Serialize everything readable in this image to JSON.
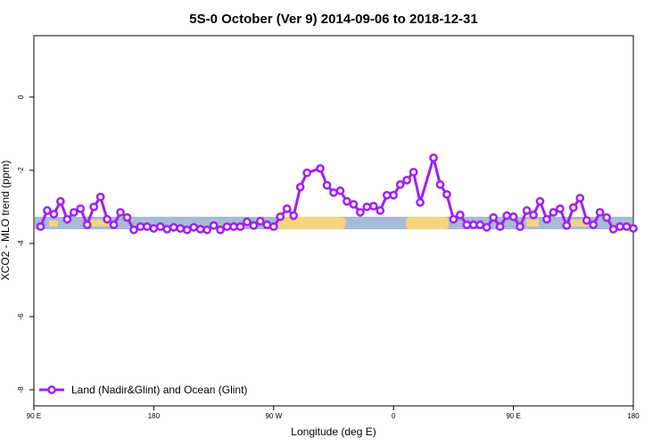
{
  "chart_data": {
    "type": "line",
    "title": "5S-0 October (Ver 9)   2014-09-06 to 2018-12-31",
    "x_label": "Longitude (deg E)",
    "y_label": "XCO2 - MLO trend (ppm)",
    "xlim": [
      90,
      540
    ],
    "xticks": [
      {
        "value": 90,
        "label": "90 E"
      },
      180,
      {
        "value": 270,
        "label": "90 W"
      },
      {
        "value": 360,
        "label": "0"
      },
      {
        "value": 450,
        "label": "90 E"
      },
      {
        "value": 540,
        "label": "180"
      }
    ],
    "ylim": [
      -8.44,
      1.68
    ],
    "yticks": [
      0,
      -2,
      -4,
      -6,
      -8
    ],
    "legend": "bottom-left",
    "series": [
      {
        "name": "Land (Nadir&Glint) and Ocean (Glint)",
        "color": "#a020f0",
        "x": [
          95,
          100,
          105,
          110,
          115,
          120,
          125,
          130,
          135,
          140,
          145,
          150,
          155,
          160,
          165,
          170,
          175,
          180,
          185,
          190,
          195,
          200,
          205,
          210,
          215,
          220,
          225,
          230,
          235,
          240,
          245,
          250,
          255,
          260,
          265,
          270,
          275,
          280,
          285,
          290,
          295,
          305,
          310,
          315,
          320,
          325,
          330,
          335,
          340,
          345,
          350,
          355,
          360,
          365,
          370,
          375,
          380,
          390,
          395,
          400,
          405,
          410,
          415,
          420,
          425,
          430,
          435,
          440,
          445,
          450,
          455,
          460,
          465,
          470,
          475,
          480,
          485,
          490,
          495,
          500,
          505,
          510,
          515,
          520,
          525,
          530,
          535,
          540
        ],
        "values": [
          -3.54,
          -3.1,
          -3.2,
          -2.85,
          -3.34,
          -3.15,
          -3.05,
          -3.49,
          -3.0,
          -2.73,
          -3.34,
          -3.49,
          -3.15,
          -3.29,
          -3.63,
          -3.54,
          -3.54,
          -3.59,
          -3.54,
          -3.61,
          -3.56,
          -3.59,
          -3.63,
          -3.56,
          -3.61,
          -3.63,
          -3.51,
          -3.63,
          -3.54,
          -3.54,
          -3.54,
          -3.41,
          -3.51,
          -3.39,
          -3.49,
          -3.54,
          -3.27,
          -3.05,
          -3.24,
          -2.46,
          -2.07,
          -1.95,
          -2.41,
          -2.61,
          -2.56,
          -2.85,
          -2.93,
          -3.15,
          -3.0,
          -2.98,
          -3.1,
          -2.68,
          -2.68,
          -2.39,
          -2.27,
          -2.05,
          -2.88,
          -1.66,
          -2.39,
          -2.66,
          -3.34,
          -3.22,
          -3.49,
          -3.49,
          -3.49,
          -3.56,
          -3.29,
          -3.54,
          -3.24,
          -3.27,
          -3.54,
          -3.1,
          -3.22,
          -2.85,
          -3.34,
          -3.15,
          -3.05,
          -3.51,
          -3.02,
          -2.76,
          -3.37,
          -3.49,
          -3.15,
          -3.29,
          -3.61,
          -3.54,
          -3.54,
          -3.59
        ]
      }
    ]
  }
}
